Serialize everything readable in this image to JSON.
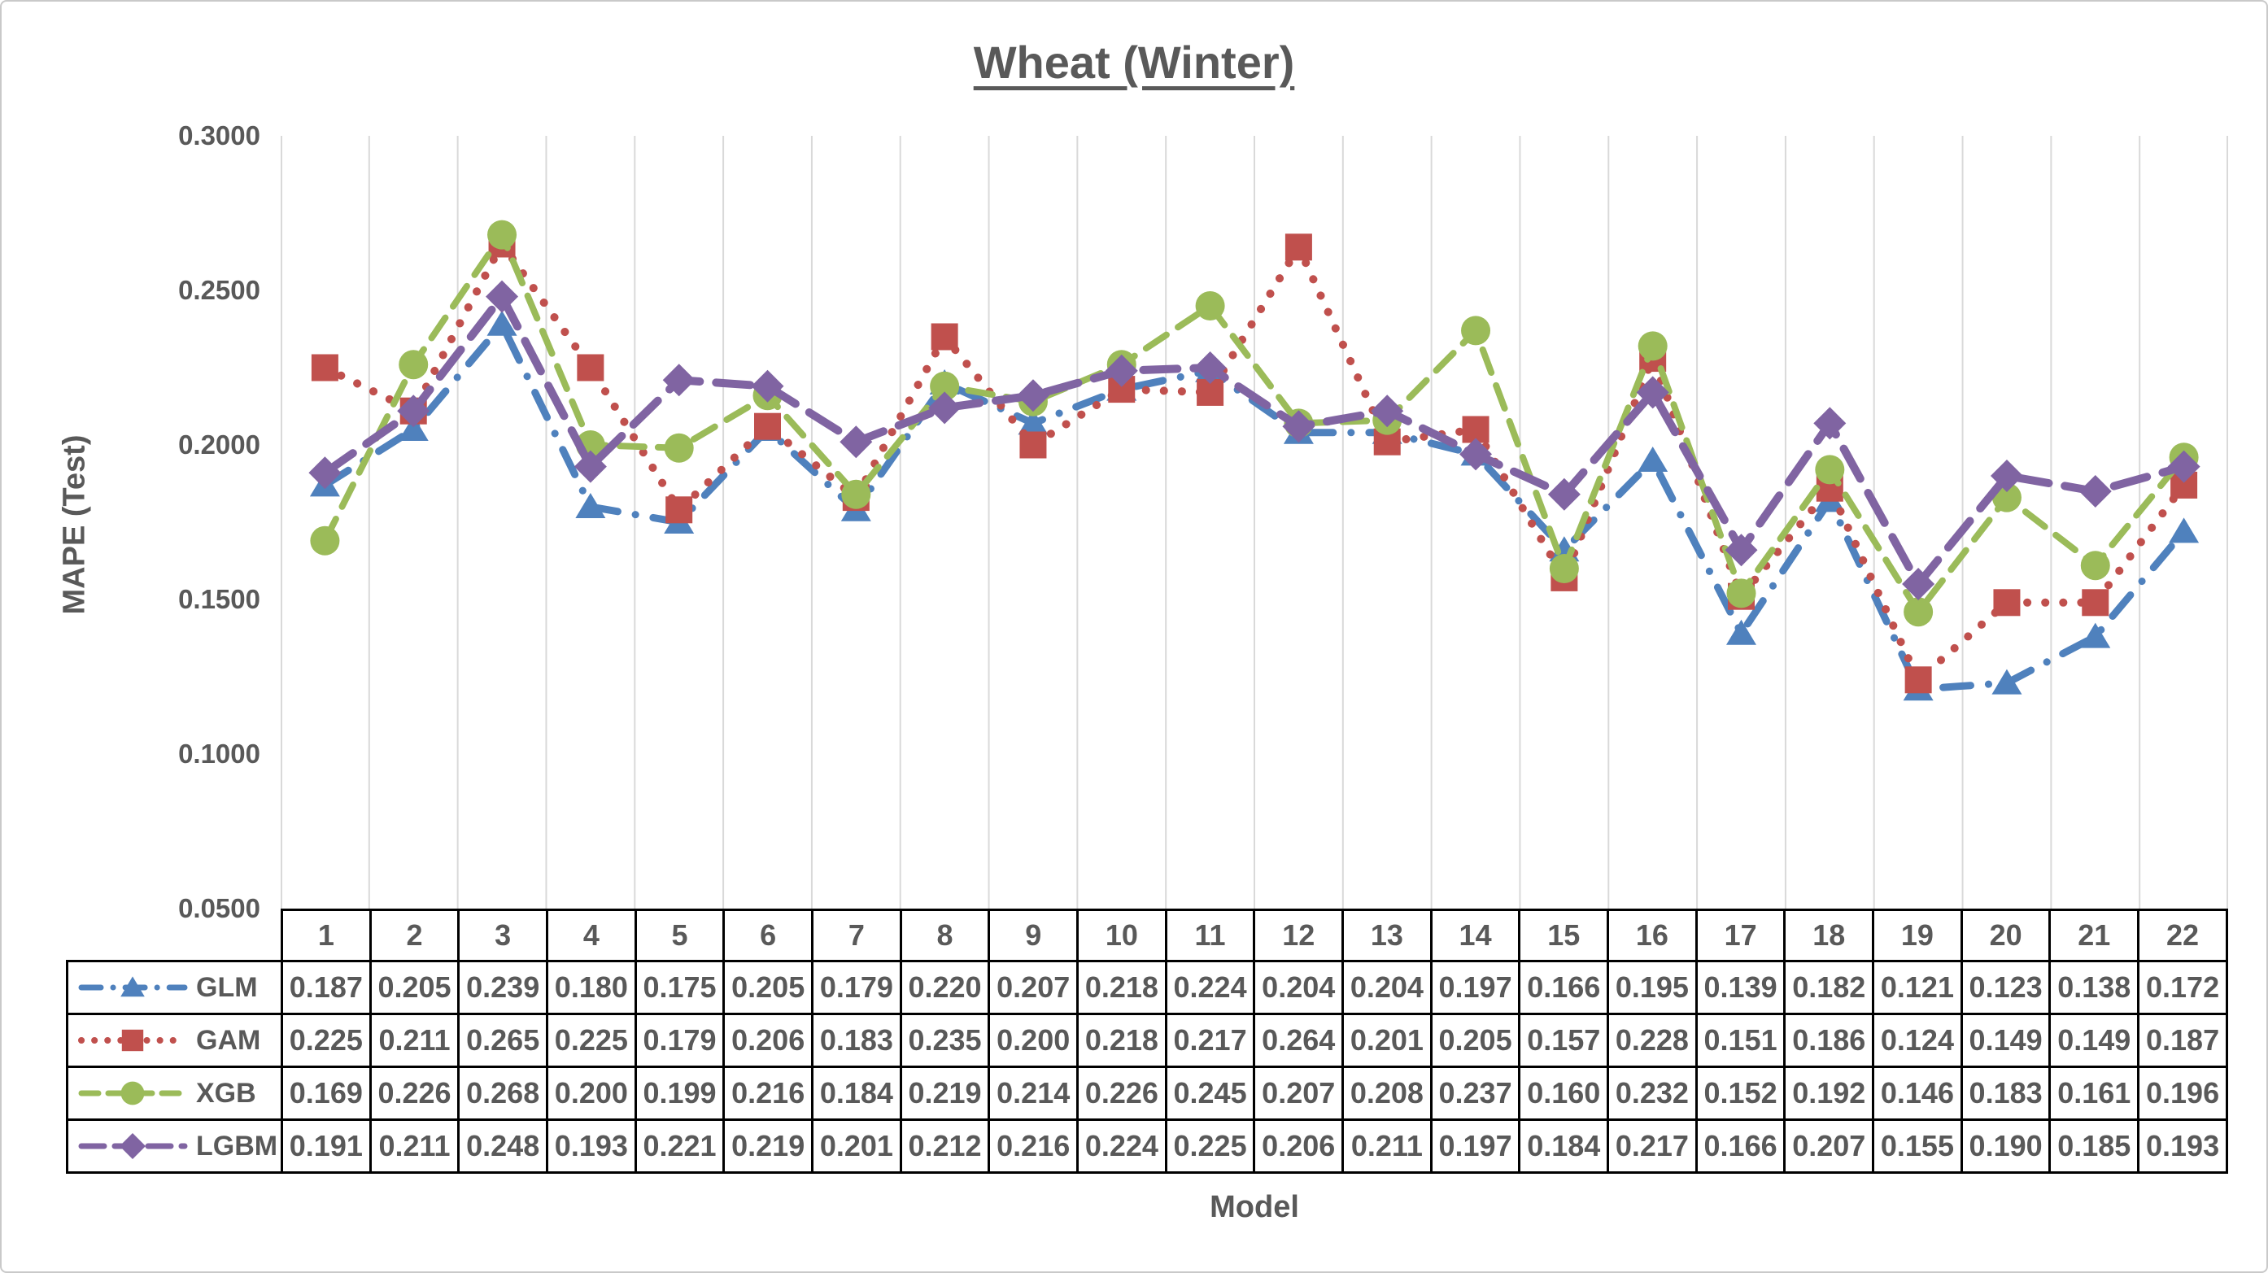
{
  "page": {
    "background": "#FFFFFF",
    "border_color": "#C9C9C9"
  },
  "chart_data": {
    "type": "line",
    "title": "Wheat (Winter)",
    "xlabel": "Model",
    "ylabel": "MAPE (Test)",
    "categories": [
      "1",
      "2",
      "3",
      "4",
      "5",
      "6",
      "7",
      "8",
      "9",
      "10",
      "11",
      "12",
      "13",
      "14",
      "15",
      "16",
      "17",
      "18",
      "19",
      "20",
      "21",
      "22"
    ],
    "ylim": [
      0.05,
      0.3
    ],
    "ytick_values": [
      0.3,
      0.25,
      0.2,
      0.15,
      0.1,
      0.05
    ],
    "ytick_labels": [
      "0.3000",
      "0.2500",
      "0.2000",
      "0.1500",
      "0.1000",
      "0.0500"
    ],
    "grid": "vertical-only",
    "gridline_color": "#D9D9D9",
    "text_color": "#595959",
    "table_border_color": "#000000",
    "legend_position": "table-left",
    "value_format": "0.000",
    "series": [
      {
        "name": "GLM",
        "color": "#4F81BD",
        "marker": "triangle",
        "line_style": "dash-dot",
        "values": [
          0.187,
          0.205,
          0.239,
          0.18,
          0.175,
          0.205,
          0.179,
          0.22,
          0.207,
          0.218,
          0.224,
          0.204,
          0.204,
          0.197,
          0.166,
          0.195,
          0.139,
          0.182,
          0.121,
          0.123,
          0.138,
          0.172
        ]
      },
      {
        "name": "GAM",
        "color": "#C0504D",
        "marker": "square",
        "line_style": "dot",
        "values": [
          0.225,
          0.211,
          0.265,
          0.225,
          0.179,
          0.206,
          0.183,
          0.235,
          0.2,
          0.218,
          0.217,
          0.264,
          0.201,
          0.205,
          0.157,
          0.228,
          0.151,
          0.186,
          0.124,
          0.149,
          0.149,
          0.187
        ]
      },
      {
        "name": "XGB",
        "color": "#9BBB59",
        "marker": "circle",
        "line_style": "dash",
        "values": [
          0.169,
          0.226,
          0.268,
          0.2,
          0.199,
          0.216,
          0.184,
          0.219,
          0.214,
          0.226,
          0.245,
          0.207,
          0.208,
          0.237,
          0.16,
          0.232,
          0.152,
          0.192,
          0.146,
          0.183,
          0.161,
          0.196
        ]
      },
      {
        "name": "LGBM",
        "color": "#8064A2",
        "marker": "diamond",
        "line_style": "long-dash",
        "values": [
          0.191,
          0.211,
          0.248,
          0.193,
          0.221,
          0.219,
          0.201,
          0.212,
          0.216,
          0.224,
          0.225,
          0.206,
          0.211,
          0.197,
          0.184,
          0.217,
          0.166,
          0.207,
          0.155,
          0.19,
          0.185,
          0.193
        ]
      }
    ]
  }
}
